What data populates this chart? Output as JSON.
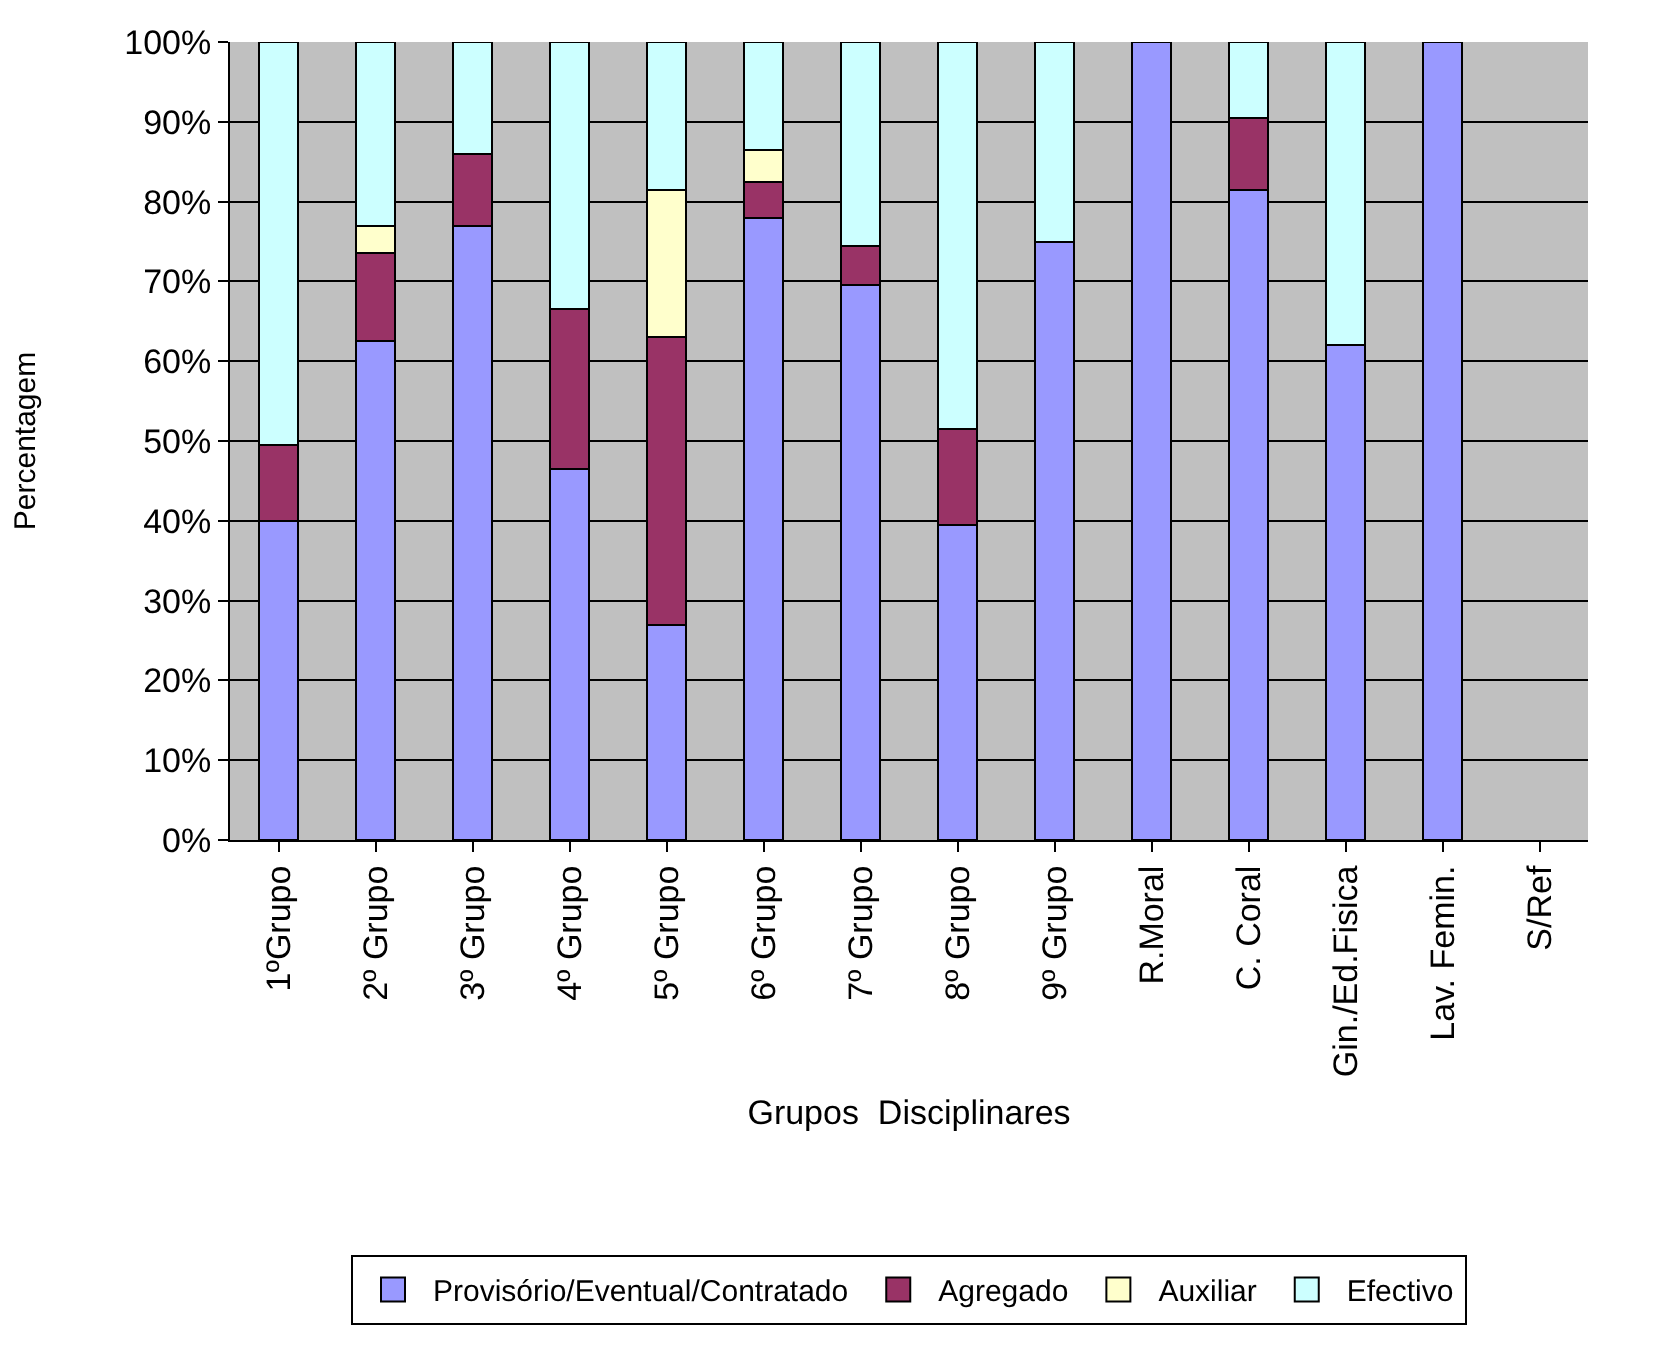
{
  "chart_data": {
    "type": "bar",
    "stacked": true,
    "xlabel": "Grupos  Disciplinares",
    "ylabel": "Percentagem",
    "categories": [
      "1ºGrupo",
      "2º Grupo",
      "3º Grupo",
      "4º Grupo",
      "5º Grupo",
      "6º Grupo",
      "7º Grupo",
      "8º Grupo",
      "9º Grupo",
      "R.Moral",
      "C. Coral",
      "Gin./Ed.Fisica",
      "Lav. Femin.",
      "S/Ref"
    ],
    "series": [
      {
        "name": "Provisório/Eventual/Contratado",
        "color": "#9999ff",
        "values": [
          40,
          62.5,
          77,
          46.5,
          27,
          78,
          69.5,
          39.5,
          75,
          100,
          81.5,
          62,
          100,
          null
        ]
      },
      {
        "name": "Agregado",
        "color": "#993366",
        "values": [
          9.5,
          11,
          9,
          20,
          36,
          4.5,
          5,
          12,
          null,
          null,
          9,
          null,
          null,
          null
        ]
      },
      {
        "name": "Auxiliar",
        "color": "#ffffcc",
        "values": [
          null,
          3.5,
          null,
          null,
          18.5,
          4,
          null,
          null,
          null,
          null,
          null,
          null,
          null,
          null
        ]
      },
      {
        "name": "Efectivo",
        "color": "#ccffff",
        "values": [
          50.5,
          23,
          14,
          33.5,
          18.5,
          13.5,
          25.5,
          48.5,
          25,
          null,
          9.5,
          38,
          null,
          null
        ]
      }
    ],
    "ylim": [
      0,
      100
    ],
    "yticks": [
      {
        "value": 0,
        "label": "0%"
      },
      {
        "value": 10,
        "label": "10%"
      },
      {
        "value": 20,
        "label": "20%"
      },
      {
        "value": 30,
        "label": "30%"
      },
      {
        "value": 40,
        "label": "40%"
      },
      {
        "value": 50,
        "label": "50%"
      },
      {
        "value": 60,
        "label": "60%"
      },
      {
        "value": 70,
        "label": "70%"
      },
      {
        "value": 80,
        "label": "80%"
      },
      {
        "value": 90,
        "label": "90%"
      },
      {
        "value": 100,
        "label": "100%"
      }
    ],
    "grid": "y",
    "legend": "bottom"
  }
}
